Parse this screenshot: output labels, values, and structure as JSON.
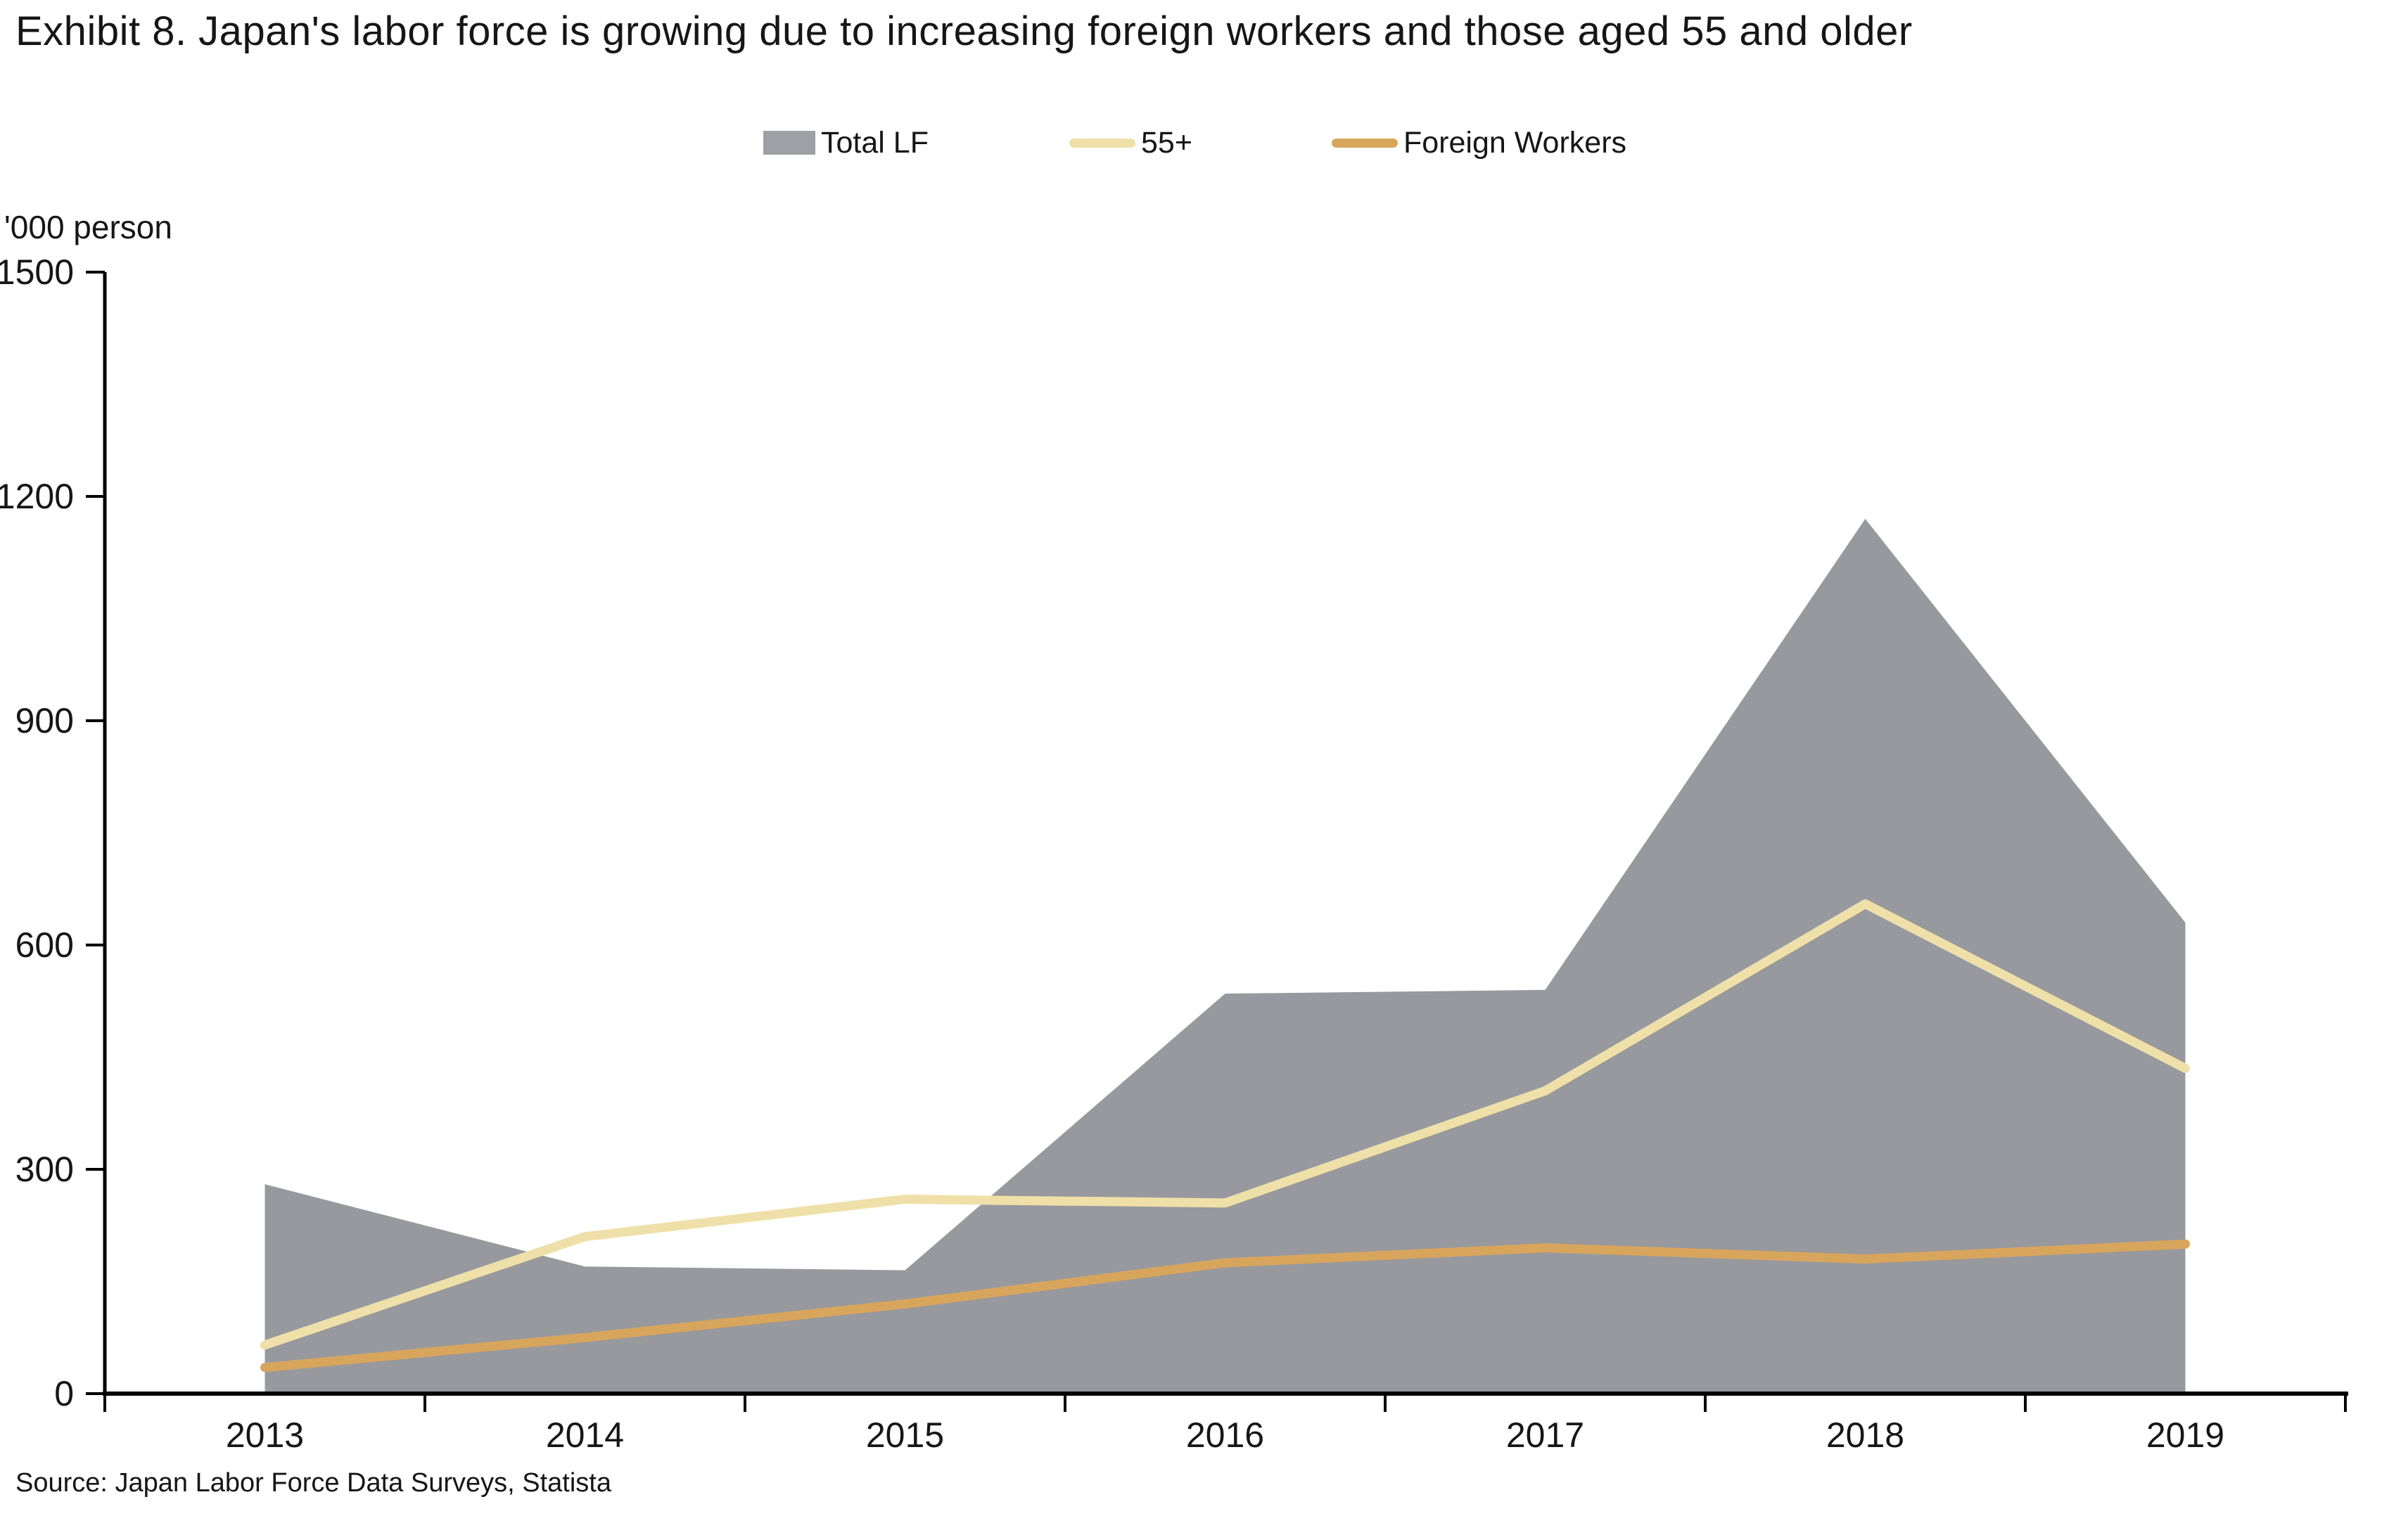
{
  "title": "Exhibit 8. Japan's labor force is growing due to increasing foreign workers and those aged 55 and older",
  "y_axis_unit": "'000 person",
  "source_note": "Source: Japan Labor Force Data Surveys, Statista",
  "colors": {
    "total_lf": "#97999E",
    "total_lf_legend": "#9DA0A4",
    "aged_55_plus": "#EFE0A9",
    "foreign_workers": "#D8A55C",
    "axis": "#000000",
    "text": "#161616"
  },
  "legend": {
    "total_label": "Total LF",
    "aged_label": "55+",
    "foreign_label": "Foreign Workers"
  },
  "chart_data": {
    "type": "area",
    "title": "Exhibit 8. Japan's labor force is growing due to increasing foreign workers and those aged 55 and older",
    "ylabel": "'000 person",
    "xlabel": "",
    "categories": [
      "2013",
      "2014",
      "2015",
      "2016",
      "2017",
      "2018",
      "2019"
    ],
    "series": [
      {
        "name": "Total LF",
        "type": "area",
        "color": "#97999E",
        "values": [
          280,
          170,
          165,
          535,
          540,
          1170,
          630
        ]
      },
      {
        "name": "55+",
        "type": "line",
        "color": "#EFE0A9",
        "values": [
          65,
          210,
          260,
          255,
          405,
          655,
          435
        ]
      },
      {
        "name": "Foreign Workers",
        "type": "line",
        "color": "#D8A55C",
        "values": [
          35,
          75,
          120,
          175,
          195,
          180,
          200
        ]
      }
    ],
    "ylim": [
      0,
      1500
    ],
    "yticks": [
      0,
      300,
      600,
      900,
      1200,
      1500
    ],
    "grid": false,
    "legend_position": "top"
  }
}
